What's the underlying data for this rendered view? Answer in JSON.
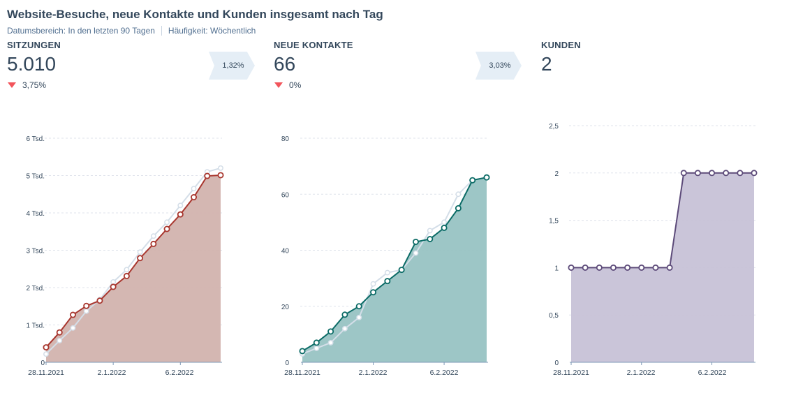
{
  "header": {
    "title": "Website-Besuche, neue Kontakte und Kunden insgesamt nach Tag",
    "date_range": "Datumsbereich: In den letzten 90 Tagen",
    "frequency": "Häufigkeit: Wöchentlich"
  },
  "kpis": [
    {
      "label": "SITZUNGEN",
      "value": "5.010",
      "delta": "3,75%"
    },
    {
      "label": "NEUE KONTAKTE",
      "value": "66",
      "delta": "0%"
    },
    {
      "label": "KUNDEN",
      "value": "2"
    }
  ],
  "conversions": [
    "1,32%",
    "3,03%"
  ],
  "colors": {
    "sessions": "#a8362e",
    "sessions_fill": "#d2b3ae",
    "contacts": "#0b6b66",
    "contacts_fill": "#98c3c3",
    "customers": "#5c4a79",
    "customers_fill": "#c7c2d7",
    "comparison": "#d4dee8"
  },
  "chart_data": [
    {
      "type": "area",
      "name": "SITZUNGEN",
      "ylim": [
        0,
        6000
      ],
      "yticks": [
        0,
        1000,
        2000,
        3000,
        4000,
        5000,
        6000
      ],
      "ytick_labels": [
        "0",
        "1 Tsd.",
        "2 Tsd.",
        "3 Tsd.",
        "4 Tsd.",
        "5 Tsd.",
        "6 Tsd."
      ],
      "xtick_labels": [
        {
          "index": 0,
          "label": "28.11.2021"
        },
        {
          "index": 5,
          "label": "2.1.2022"
        },
        {
          "index": 10,
          "label": "6.2.2022"
        }
      ],
      "series": [
        {
          "values": [
            400,
            800,
            1270,
            1510,
            1650,
            2020,
            2310,
            2790,
            3170,
            3570,
            3960,
            4420,
            4990,
            5010
          ]
        },
        {
          "values": [
            220,
            580,
            920,
            1370,
            1680,
            2150,
            2480,
            2950,
            3380,
            3750,
            4200,
            4650,
            5100,
            5200
          ]
        }
      ]
    },
    {
      "type": "area",
      "name": "NEUE KONTAKTE",
      "ylim": [
        0,
        80
      ],
      "yticks": [
        0,
        20,
        40,
        60,
        80
      ],
      "ytick_labels": [
        "0",
        "20",
        "40",
        "60",
        "80"
      ],
      "xtick_labels": [
        {
          "index": 0,
          "label": "28.11.2021"
        },
        {
          "index": 5,
          "label": "2.1.2022"
        },
        {
          "index": 10,
          "label": "6.2.2022"
        }
      ],
      "series": [
        {
          "values": [
            4,
            7,
            11,
            17,
            20,
            25,
            29,
            33,
            43,
            44,
            48,
            55,
            65,
            66
          ]
        },
        {
          "values": [
            3,
            5,
            7,
            12,
            16,
            28,
            32,
            33,
            39,
            47,
            50,
            60,
            65,
            66
          ]
        }
      ]
    },
    {
      "type": "area",
      "name": "KUNDEN",
      "ylim": [
        0,
        2.5
      ],
      "yticks": [
        0,
        0.5,
        1,
        1.5,
        2,
        2.5
      ],
      "ytick_labels": [
        "0",
        "0,5",
        "1",
        "1,5",
        "2",
        "2,5"
      ],
      "xtick_labels": [
        {
          "index": 0,
          "label": "28.11.2021"
        },
        {
          "index": 5,
          "label": "2.1.2022"
        },
        {
          "index": 10,
          "label": "6.2.2022"
        }
      ],
      "series": [
        {
          "values": [
            1,
            1,
            1,
            1,
            1,
            1,
            1,
            1,
            2,
            2,
            2,
            2,
            2,
            2
          ]
        }
      ]
    }
  ]
}
